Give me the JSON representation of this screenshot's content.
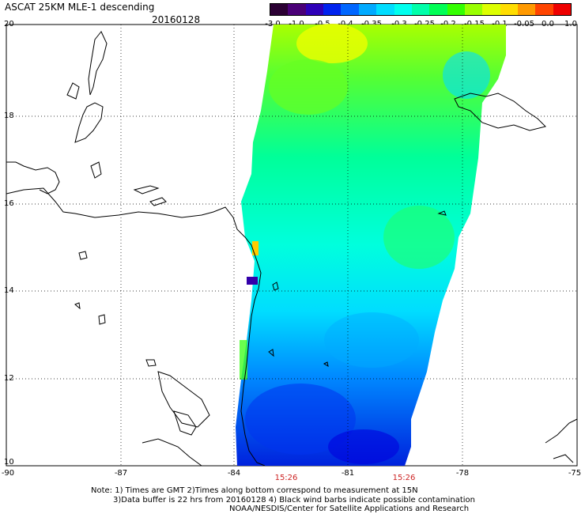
{
  "header": {
    "title": "ASCAT 25KM MLE-1 descending",
    "date": "20160128"
  },
  "colorbar": {
    "colors": [
      "#2b0033",
      "#4a0077",
      "#2e00b8",
      "#0022ee",
      "#0066ff",
      "#00aaff",
      "#00ddff",
      "#00ffee",
      "#00ffaa",
      "#00ff55",
      "#33ff00",
      "#99ff00",
      "#ddff00",
      "#ffdd00",
      "#ff9900",
      "#ff4400",
      "#ee0000"
    ],
    "labels": [
      "-3.0",
      "-1.0",
      "-0.5",
      "-0.4",
      "-0.35",
      "-0.3",
      "-0.25",
      "-0.2",
      "-0.15",
      "-0.1",
      "-0.05",
      "0.0",
      "1.0"
    ]
  },
  "axes": {
    "lat_labels": [
      "20",
      "18",
      "16",
      "14",
      "12",
      "10"
    ],
    "lon_labels": [
      "-90",
      "-87",
      "-84",
      "-81",
      "-78",
      "-75"
    ],
    "lon_range": [
      -90,
      -75
    ],
    "lat_range": [
      10,
      20
    ]
  },
  "times": [
    "15:26",
    "15:26"
  ],
  "notes": [
    "Note: 1) Times are GMT 2)Times along bottom correspond to measurement at 15N",
    "3)Data buffer is 22 hrs from 20160128 4) Black wind barbs indicate possible contamination",
    "NOAA/NESDIS/Center for Satellite Applications and Research"
  ]
}
